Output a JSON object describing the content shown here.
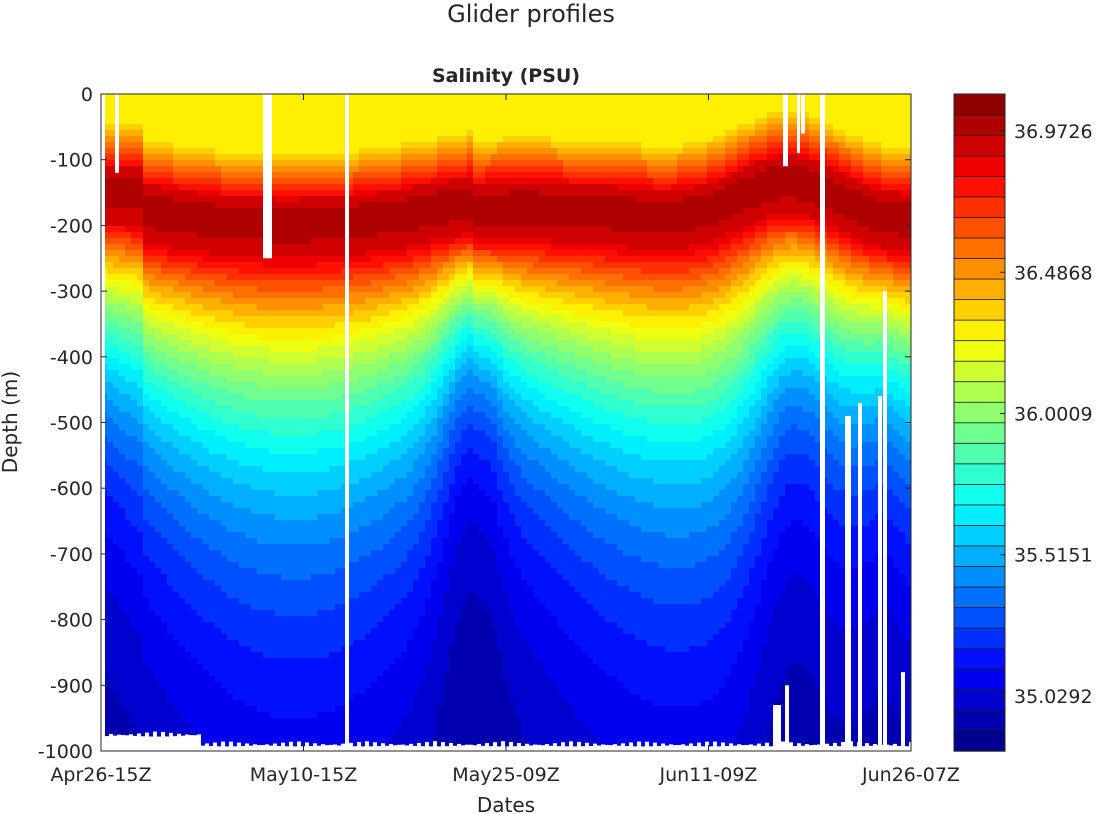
{
  "figure_title": "Glider profiles",
  "chart_data": {
    "type": "heatmap",
    "title": "Salinity  (PSU)",
    "xlabel": "Dates",
    "ylabel": "Depth  (m)",
    "x_tick_labels": [
      "Apr26-15Z",
      "May10-15Z",
      "May25-09Z",
      "Jun11-09Z",
      "Jun26-07Z"
    ],
    "y_ticks": [
      0,
      -100,
      -200,
      -300,
      -400,
      -500,
      -600,
      -700,
      -800,
      -900,
      -1000
    ],
    "ylim": [
      -1000,
      0
    ],
    "colorbar": {
      "range": [
        34.84,
        37.1
      ],
      "levels": 32,
      "tick_labels": [
        "36.9726",
        "36.4868",
        "36.0009",
        "35.5151",
        "35.0292"
      ],
      "tick_values": [
        36.9726,
        36.4868,
        36.0009,
        35.5151,
        35.0292
      ],
      "colormap": "jet"
    },
    "field_description": {
      "surface_salinity": 36.35,
      "max_salinity_layer_depth_range": [
        -120,
        -260
      ],
      "deep_salinity": 34.95
    }
  }
}
